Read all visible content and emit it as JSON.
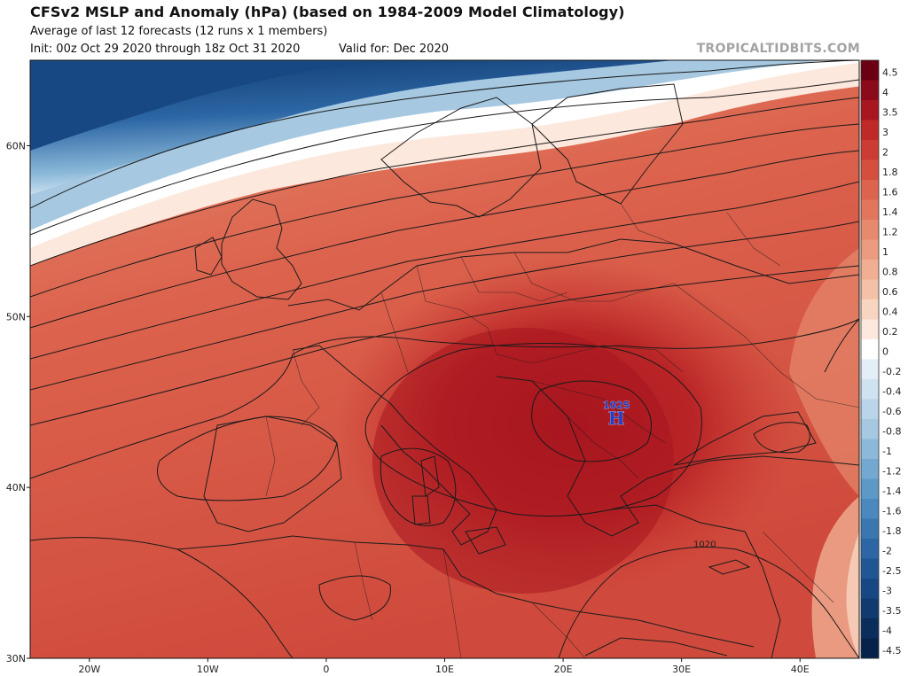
{
  "header": {
    "title": "CFSv2 MSLP and Anomaly (hPa) (based on 1984-2009 Model Climatology)",
    "subtitle": "Average of last 12 forecasts (12 runs x 1 members)",
    "init": "Init: 00z Oct 29 2020 through 18z Oct 31 2020",
    "valid": "Valid for: Dec 2020",
    "credit": "TROPICALTIDBITS.COM"
  },
  "map": {
    "region": "Europe / North Africa",
    "lon_range": [
      -25,
      45
    ],
    "lat_range": [
      30,
      65
    ],
    "lon_ticks": [
      {
        "lon": -20,
        "label": "20W"
      },
      {
        "lon": -10,
        "label": "10W"
      },
      {
        "lon": 0,
        "label": "0"
      },
      {
        "lon": 10,
        "label": "10E"
      },
      {
        "lon": 20,
        "label": "20E"
      },
      {
        "lon": 30,
        "label": "30E"
      },
      {
        "lon": 40,
        "label": "40E"
      }
    ],
    "lat_ticks": [
      {
        "lat": 60,
        "label": "60N"
      },
      {
        "lat": 50,
        "label": "50N"
      },
      {
        "lat": 40,
        "label": "40N"
      },
      {
        "lat": 30,
        "label": "30N"
      }
    ],
    "high_center": {
      "symbol": "H",
      "value": "1025",
      "lon": 24.5,
      "lat": 44.3,
      "color": "#1f3ec9"
    },
    "isobar_label": {
      "text": "1020",
      "lon": 31,
      "lat": 36.5
    }
  },
  "colorbar": {
    "labels": [
      "4.5",
      "4",
      "3.5",
      "3",
      "2",
      "1.8",
      "1.6",
      "1.4",
      "1.2",
      "1",
      "0.8",
      "0.6",
      "0.4",
      "0.2",
      "0",
      "-0.2",
      "-0.4",
      "-0.6",
      "-0.8",
      "-1",
      "-1.2",
      "-1.4",
      "-1.6",
      "-1.8",
      "-2",
      "-2.5",
      "-3",
      "-3.5",
      "-4",
      "-4.5"
    ],
    "colors": [
      "#6b0012",
      "#8c0b1a",
      "#a8161f",
      "#bf2a28",
      "#cc3c33",
      "#d54f3f",
      "#dc634d",
      "#e1765c",
      "#e6896c",
      "#eb9b7e",
      "#f0ae92",
      "#f4c1a8",
      "#f8d5c1",
      "#fce8dc",
      "#ffffff",
      "#e3eef7",
      "#cfe2f0",
      "#bad5e9",
      "#a6c8e1",
      "#8cb9d9",
      "#73a9d0",
      "#5d99c6",
      "#4a88bd",
      "#3a77b1",
      "#2c66a4",
      "#215694",
      "#184884",
      "#103a70",
      "#0a2d5c",
      "#06224a"
    ]
  }
}
